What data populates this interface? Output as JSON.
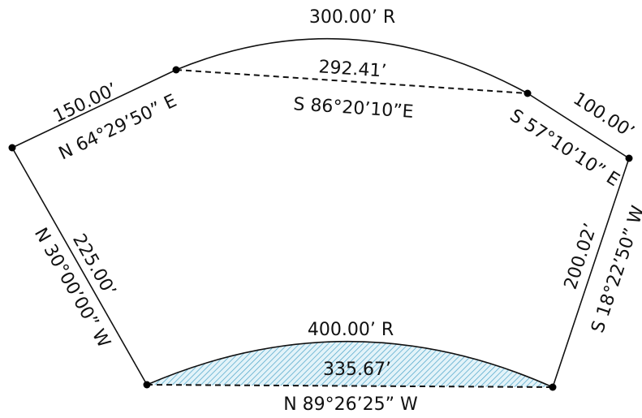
{
  "labels": {
    "top_arc_radius": "300.00’ R",
    "top_chord_length": "292.41’",
    "top_chord_bearing": "S 86°20’10”E",
    "left_top_length": "150.00’",
    "left_top_bearing": "N 64°29’50” E",
    "right_top_length": "100.00’",
    "right_top_bearing": "S 57°10’10” E",
    "left_side_length": "225.00’",
    "left_side_bearing": "N 30°00’00” W",
    "right_side_length": "200.02’",
    "right_side_bearing": "S 18°22’50” W",
    "bottom_arc_radius": "400.00’ R",
    "bottom_chord_length": "335.67’",
    "bottom_chord_bearing": "N 89°26’25” W"
  },
  "colors": {
    "hatch": "#4aa3c8",
    "hatch_fill": "#e3f3f9",
    "line": "#111111"
  }
}
